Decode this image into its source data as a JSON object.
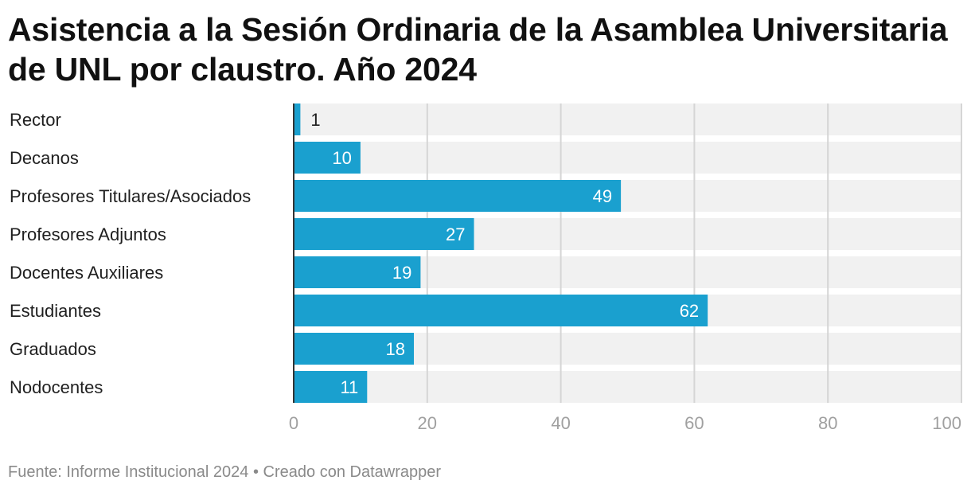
{
  "title": "Asistencia a la Sesión Ordinaria de la Asamblea Universitaria de UNL por claustro. Año 2024",
  "footer": {
    "source": "Fuente: Informe Institucional 2024",
    "separator": "•",
    "credit": "Creado con Datawrapper"
  },
  "colors": {
    "bar": "#1aa0cf",
    "track": "#f1f1f1",
    "grid": "#d5d5d5",
    "axis_line": "#333333",
    "tick_text": "#a0a0a0",
    "label_text": "#1f1f1f"
  },
  "chart_data": {
    "type": "bar",
    "orientation": "horizontal",
    "title": "Asistencia a la Sesión Ordinaria de la Asamblea Universitaria de UNL por claustro. Año 2024",
    "categories": [
      "Rector",
      "Decanos",
      "Profesores Titulares/Asociados",
      "Profesores Adjuntos",
      "Docentes Auxiliares",
      "Estudiantes",
      "Graduados",
      "Nodocentes"
    ],
    "values": [
      1,
      10,
      49,
      27,
      19,
      62,
      18,
      11
    ],
    "xlim": [
      0,
      100
    ],
    "xticks": [
      0,
      20,
      40,
      60,
      80,
      100
    ],
    "xlabel": "",
    "ylabel": "",
    "grid": true,
    "data_labels": true
  }
}
